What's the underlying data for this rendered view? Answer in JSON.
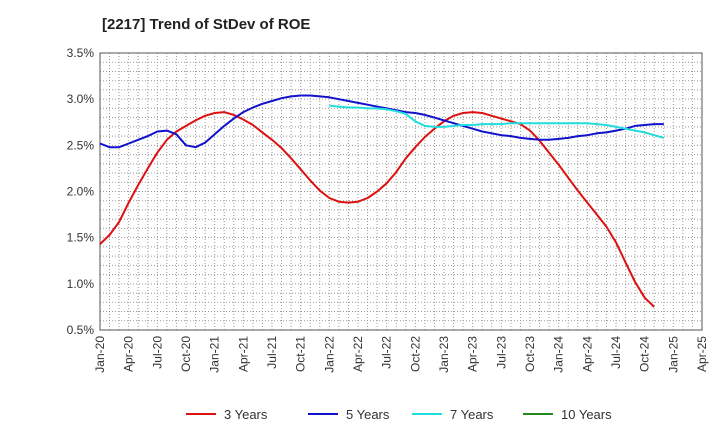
{
  "chart_data": {
    "type": "line",
    "title": "[2217]  Trend of StDev of ROE",
    "xlabel": "",
    "ylabel": "",
    "x_ticks": [
      "Jan-20",
      "Apr-20",
      "Jul-20",
      "Oct-20",
      "Jan-21",
      "Apr-21",
      "Jul-21",
      "Oct-21",
      "Jan-22",
      "Apr-22",
      "Jul-22",
      "Oct-22",
      "Jan-23",
      "Apr-23",
      "Jul-23",
      "Oct-23",
      "Jan-24",
      "Apr-24",
      "Jul-24",
      "Oct-24",
      "Jan-25",
      "Apr-25"
    ],
    "y_ticks": [
      "0.5%",
      "1.0%",
      "1.5%",
      "2.0%",
      "2.5%",
      "3.0%",
      "3.5%"
    ],
    "ylim": [
      0.5,
      3.5
    ],
    "xlim": [
      "Jan-20",
      "Apr-25"
    ],
    "grid": true,
    "legend_position": "bottom",
    "series": [
      {
        "name": "3 Years",
        "color": "#dd1111",
        "points": [
          [
            "Jan-20",
            1.43
          ],
          [
            "Feb-20",
            1.53
          ],
          [
            "Mar-20",
            1.67
          ],
          [
            "Apr-20",
            1.88
          ],
          [
            "May-20",
            2.07
          ],
          [
            "Jun-20",
            2.25
          ],
          [
            "Jul-20",
            2.42
          ],
          [
            "Aug-20",
            2.56
          ],
          [
            "Sep-20",
            2.65
          ],
          [
            "Oct-20",
            2.71
          ],
          [
            "Nov-20",
            2.77
          ],
          [
            "Dec-20",
            2.82
          ],
          [
            "Jan-21",
            2.85
          ],
          [
            "Feb-21",
            2.86
          ],
          [
            "Mar-21",
            2.83
          ],
          [
            "Apr-21",
            2.78
          ],
          [
            "May-21",
            2.72
          ],
          [
            "Jun-21",
            2.64
          ],
          [
            "Jul-21",
            2.56
          ],
          [
            "Aug-21",
            2.47
          ],
          [
            "Sep-21",
            2.36
          ],
          [
            "Oct-21",
            2.24
          ],
          [
            "Nov-21",
            2.12
          ],
          [
            "Dec-21",
            2.01
          ],
          [
            "Jan-22",
            1.93
          ],
          [
            "Feb-22",
            1.89
          ],
          [
            "Mar-22",
            1.88
          ],
          [
            "Apr-22",
            1.89
          ],
          [
            "May-22",
            1.93
          ],
          [
            "Jun-22",
            2.0
          ],
          [
            "Jul-22",
            2.09
          ],
          [
            "Aug-22",
            2.21
          ],
          [
            "Sep-22",
            2.36
          ],
          [
            "Oct-22",
            2.48
          ],
          [
            "Nov-22",
            2.59
          ],
          [
            "Dec-22",
            2.68
          ],
          [
            "Jan-23",
            2.76
          ],
          [
            "Feb-23",
            2.82
          ],
          [
            "Mar-23",
            2.85
          ],
          [
            "Apr-23",
            2.86
          ],
          [
            "May-23",
            2.85
          ],
          [
            "Jun-23",
            2.82
          ],
          [
            "Jul-23",
            2.79
          ],
          [
            "Aug-23",
            2.76
          ],
          [
            "Sep-23",
            2.73
          ],
          [
            "Oct-23",
            2.66
          ],
          [
            "Nov-23",
            2.55
          ],
          [
            "Dec-23",
            2.42
          ],
          [
            "Jan-24",
            2.29
          ],
          [
            "Feb-24",
            2.15
          ],
          [
            "Mar-24",
            2.01
          ],
          [
            "Apr-24",
            1.88
          ],
          [
            "May-24",
            1.75
          ],
          [
            "Jun-24",
            1.62
          ],
          [
            "Jul-24",
            1.45
          ],
          [
            "Aug-24",
            1.23
          ],
          [
            "Sep-24",
            1.02
          ],
          [
            "Oct-24",
            0.85
          ],
          [
            "Nov-24",
            0.75
          ]
        ]
      },
      {
        "name": "5 Years",
        "color": "#1111cc",
        "points": [
          [
            "Jan-20",
            2.52
          ],
          [
            "Feb-20",
            2.48
          ],
          [
            "Mar-20",
            2.48
          ],
          [
            "Apr-20",
            2.52
          ],
          [
            "May-20",
            2.56
          ],
          [
            "Jun-20",
            2.6
          ],
          [
            "Jul-20",
            2.65
          ],
          [
            "Aug-20",
            2.66
          ],
          [
            "Sep-20",
            2.62
          ],
          [
            "Oct-20",
            2.5
          ],
          [
            "Nov-20",
            2.48
          ],
          [
            "Dec-20",
            2.53
          ],
          [
            "Jan-21",
            2.62
          ],
          [
            "Feb-21",
            2.71
          ],
          [
            "Mar-21",
            2.79
          ],
          [
            "Apr-21",
            2.86
          ],
          [
            "May-21",
            2.91
          ],
          [
            "Jun-21",
            2.95
          ],
          [
            "Jul-21",
            2.98
          ],
          [
            "Aug-21",
            3.01
          ],
          [
            "Sep-21",
            3.03
          ],
          [
            "Oct-21",
            3.04
          ],
          [
            "Nov-21",
            3.04
          ],
          [
            "Dec-21",
            3.03
          ],
          [
            "Jan-22",
            3.02
          ],
          [
            "Feb-22",
            3.0
          ],
          [
            "Mar-22",
            2.98
          ],
          [
            "Apr-22",
            2.96
          ],
          [
            "May-22",
            2.94
          ],
          [
            "Jun-22",
            2.92
          ],
          [
            "Jul-22",
            2.9
          ],
          [
            "Aug-22",
            2.88
          ],
          [
            "Sep-22",
            2.86
          ],
          [
            "Oct-22",
            2.85
          ],
          [
            "Nov-22",
            2.83
          ],
          [
            "Dec-22",
            2.8
          ],
          [
            "Jan-23",
            2.77
          ],
          [
            "Feb-23",
            2.74
          ],
          [
            "Mar-23",
            2.71
          ],
          [
            "Apr-23",
            2.68
          ],
          [
            "May-23",
            2.65
          ],
          [
            "Jun-23",
            2.63
          ],
          [
            "Jul-23",
            2.61
          ],
          [
            "Aug-23",
            2.6
          ],
          [
            "Sep-23",
            2.58
          ],
          [
            "Oct-23",
            2.57
          ],
          [
            "Nov-23",
            2.56
          ],
          [
            "Dec-23",
            2.56
          ],
          [
            "Jan-24",
            2.57
          ],
          [
            "Feb-24",
            2.58
          ],
          [
            "Mar-24",
            2.6
          ],
          [
            "Apr-24",
            2.61
          ],
          [
            "May-24",
            2.63
          ],
          [
            "Jun-24",
            2.64
          ],
          [
            "Jul-24",
            2.66
          ],
          [
            "Aug-24",
            2.68
          ],
          [
            "Sep-24",
            2.71
          ],
          [
            "Oct-24",
            2.72
          ],
          [
            "Nov-24",
            2.73
          ],
          [
            "Dec-24",
            2.73
          ]
        ]
      },
      {
        "name": "7 Years",
        "color": "#22dddd",
        "points": [
          [
            "Jan-22",
            2.93
          ],
          [
            "Feb-22",
            2.92
          ],
          [
            "Mar-22",
            2.91
          ],
          [
            "Apr-22",
            2.91
          ],
          [
            "May-22",
            2.9
          ],
          [
            "Jun-22",
            2.9
          ],
          [
            "Jul-22",
            2.89
          ],
          [
            "Aug-22",
            2.87
          ],
          [
            "Sep-22",
            2.84
          ],
          [
            "Oct-22",
            2.76
          ],
          [
            "Nov-22",
            2.71
          ],
          [
            "Dec-22",
            2.7
          ],
          [
            "Jan-23",
            2.7
          ],
          [
            "Feb-23",
            2.71
          ],
          [
            "Mar-23",
            2.72
          ],
          [
            "Apr-23",
            2.72
          ],
          [
            "May-23",
            2.73
          ],
          [
            "Jun-23",
            2.73
          ],
          [
            "Jul-23",
            2.73
          ],
          [
            "Aug-23",
            2.74
          ],
          [
            "Sep-23",
            2.74
          ],
          [
            "Oct-23",
            2.74
          ],
          [
            "Nov-23",
            2.74
          ],
          [
            "Dec-23",
            2.74
          ],
          [
            "Jan-24",
            2.74
          ],
          [
            "Feb-24",
            2.74
          ],
          [
            "Mar-24",
            2.74
          ],
          [
            "Apr-24",
            2.74
          ],
          [
            "May-24",
            2.73
          ],
          [
            "Jun-24",
            2.72
          ],
          [
            "Jul-24",
            2.7
          ],
          [
            "Aug-24",
            2.68
          ],
          [
            "Sep-24",
            2.66
          ],
          [
            "Oct-24",
            2.64
          ],
          [
            "Nov-24",
            2.61
          ],
          [
            "Dec-24",
            2.58
          ]
        ]
      },
      {
        "name": "10 Years",
        "color": "#228822",
        "points": []
      }
    ]
  }
}
